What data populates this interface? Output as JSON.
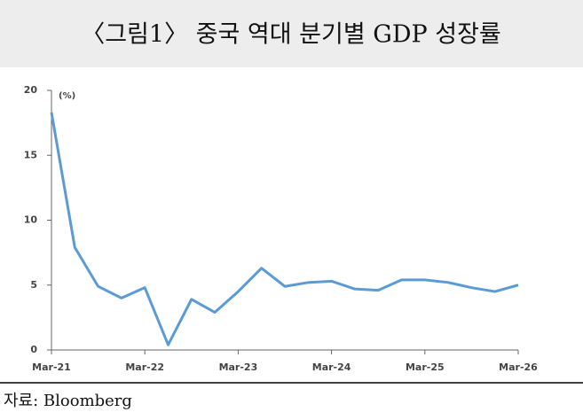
{
  "chart_data": {
    "type": "line",
    "title": "〈그림1〉 중국 역대 분기별 GDP 성장률",
    "y_unit": "(%)",
    "source": "자료: Bloomberg",
    "categories": [
      "Mar-21",
      null,
      null,
      null,
      "Mar-22",
      null,
      null,
      null,
      "Mar-23",
      null,
      null,
      null,
      "Mar-24",
      null,
      null,
      null,
      "Mar-25",
      null,
      null,
      null,
      "Mar-26"
    ],
    "series": [
      {
        "name": "GDP",
        "color": "#5b9bd5",
        "values": [
          18.3,
          7.9,
          4.9,
          4.0,
          4.8,
          0.4,
          3.9,
          2.9,
          4.5,
          6.3,
          4.9,
          5.2,
          5.3,
          4.7,
          4.6,
          5.4,
          5.4,
          5.2,
          4.8,
          4.5,
          5.0
        ]
      }
    ],
    "ylim": [
      0,
      20
    ],
    "yticks": [
      0,
      5,
      10,
      15,
      20
    ],
    "grid": false
  }
}
